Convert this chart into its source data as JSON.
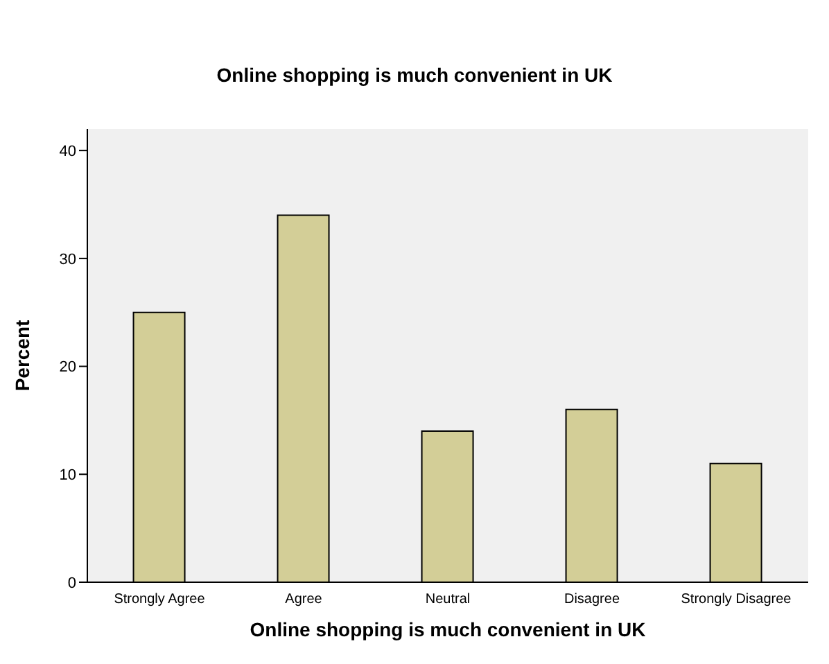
{
  "chart_data": {
    "type": "bar",
    "title": "Online shopping is much convenient in UK",
    "xlabel": "Online shopping is much convenient in UK",
    "ylabel": "Percent",
    "categories": [
      "Strongly Agree",
      "Agree",
      "Neutral",
      "Disagree",
      "Strongly Disagree"
    ],
    "values": [
      25,
      34,
      14,
      16,
      11
    ],
    "color": "#d3ce97",
    "ylim": [
      0,
      42
    ],
    "yticks": [
      0,
      10,
      20,
      30,
      40
    ],
    "grid": false,
    "legend": false
  }
}
